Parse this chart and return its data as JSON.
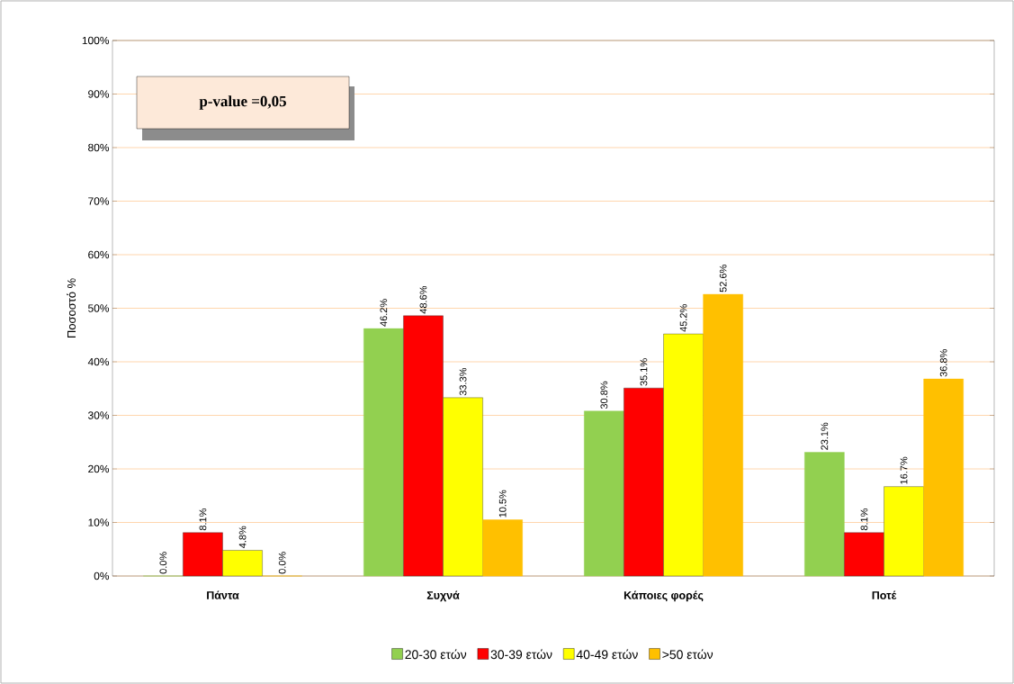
{
  "chart_data": {
    "type": "bar",
    "ylabel": "Ποσοστό %",
    "categories": [
      "Πάντα",
      "Συχνά",
      "Κάποιες φορές",
      "Ποτέ"
    ],
    "series": [
      {
        "name": "20-30 ετών",
        "color": "#92d050",
        "values": [
          0.0,
          46.2,
          30.8,
          23.1
        ],
        "value_labels": [
          "0.0%",
          "46.2%",
          "30.8%",
          "23.1%"
        ]
      },
      {
        "name": "30-39 ετών",
        "color": "#ff0000",
        "values": [
          8.1,
          48.6,
          35.1,
          8.1
        ],
        "value_labels": [
          "8.1%",
          "48.6%",
          "35.1%",
          "8.1%"
        ]
      },
      {
        "name": "40-49 ετών",
        "color": "#ffff00",
        "values": [
          4.8,
          33.3,
          45.2,
          16.7
        ],
        "value_labels": [
          "4.8%",
          "33.3%",
          "45.2%",
          "16.7%"
        ]
      },
      {
        "name": ">50 ετών",
        "color": "#ffc000",
        "values": [
          0.0,
          10.5,
          52.6,
          36.8
        ],
        "value_labels": [
          "0.0%",
          "10.5%",
          "52.6%",
          "36.8%"
        ]
      }
    ],
    "ylim": [
      0,
      100
    ],
    "yticks": [
      {
        "value": 0,
        "label": "0%"
      },
      {
        "value": 10,
        "label": "10%"
      },
      {
        "value": 20,
        "label": "20%"
      },
      {
        "value": 30,
        "label": "30%"
      },
      {
        "value": 40,
        "label": "40%"
      },
      {
        "value": 50,
        "label": "50%"
      },
      {
        "value": 60,
        "label": "60%"
      },
      {
        "value": 70,
        "label": "70%"
      },
      {
        "value": 80,
        "label": "80%"
      },
      {
        "value": 90,
        "label": "90%"
      },
      {
        "value": 100,
        "label": "100%"
      }
    ],
    "grid": "y",
    "legend": "bottom",
    "annotations": [
      "p-value =0,05"
    ]
  }
}
